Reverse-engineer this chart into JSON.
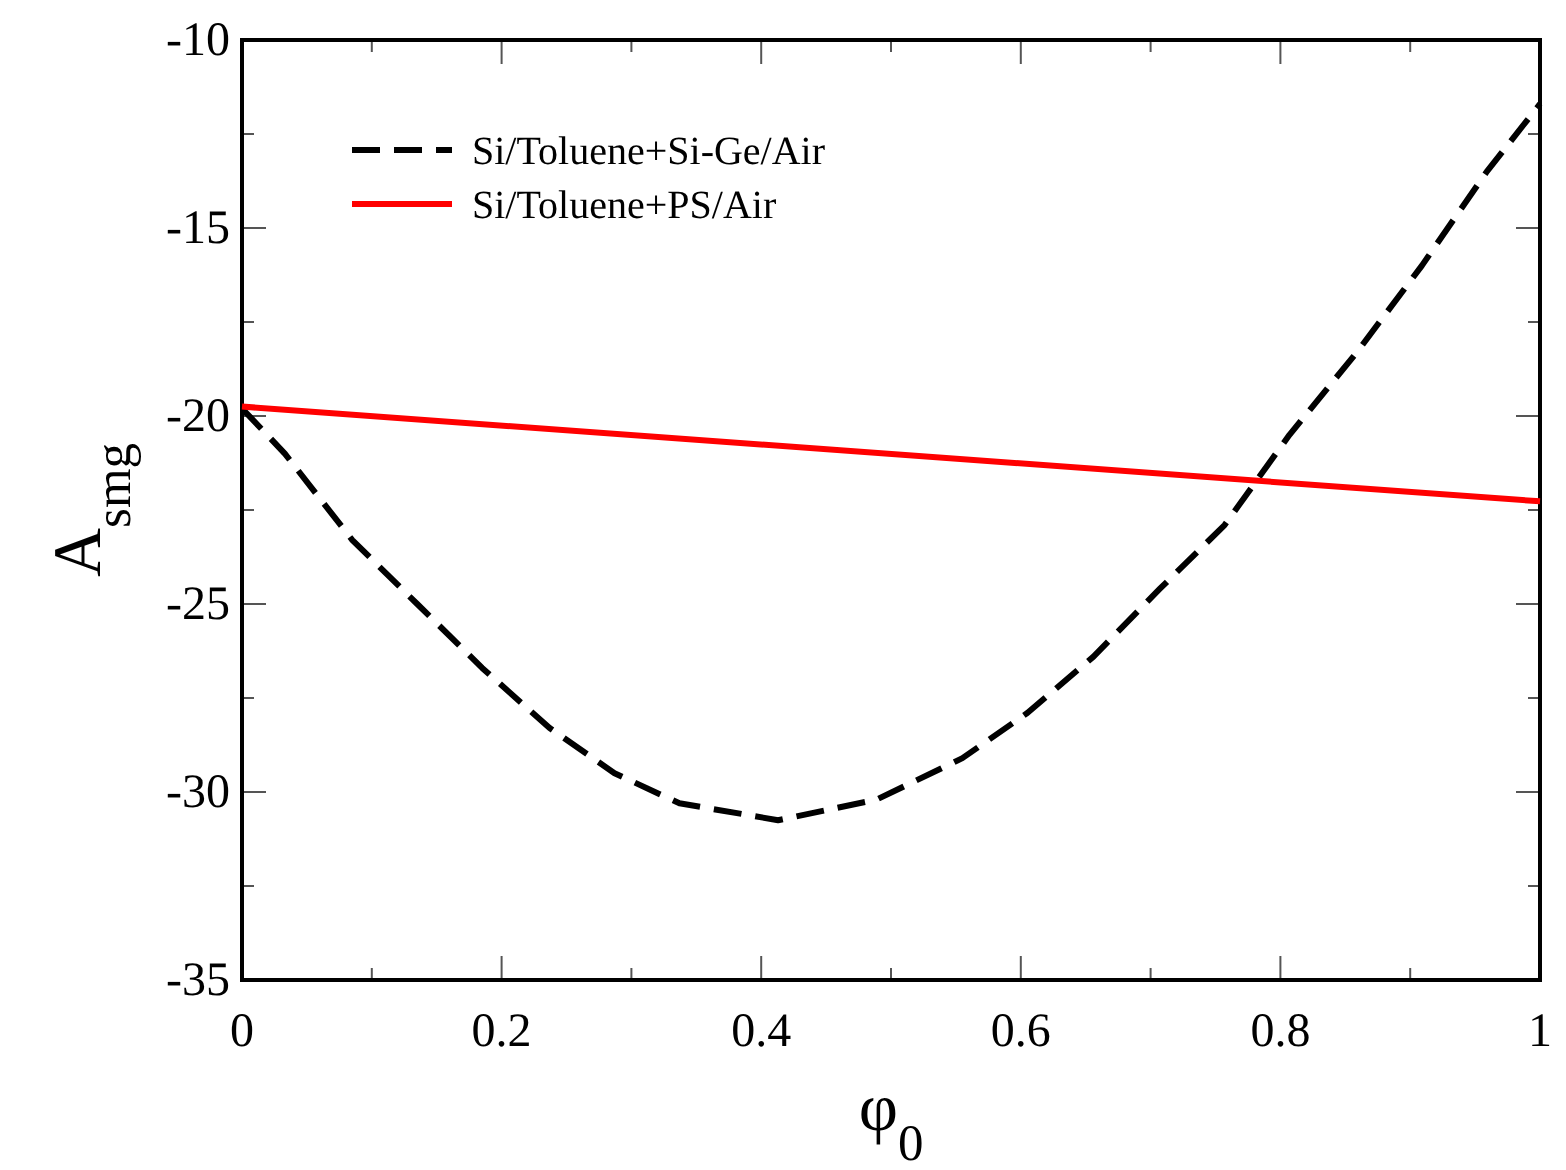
{
  "chart_data": {
    "type": "line",
    "xlabel": "φ$_{0}$",
    "ylabel": "A$_{smg}$",
    "xlim": [
      0,
      1
    ],
    "ylim": [
      -35,
      -10
    ],
    "xticks": [
      0,
      0.2,
      0.4,
      0.6,
      0.8,
      1
    ],
    "yticks": [
      -35,
      -30,
      -25,
      -20,
      -15,
      -10
    ],
    "legend": "top left",
    "grid": false,
    "series": [
      {
        "name": "Si/Toluene+Si-Ge/Air",
        "color": "#000000",
        "line_style": "dashed",
        "x": [
          0,
          0.033,
          0.085,
          0.135,
          0.185,
          0.237,
          0.287,
          0.337,
          0.413,
          0.489,
          0.555,
          0.605,
          0.656,
          0.707,
          0.757,
          0.807,
          0.859,
          0.909,
          0.959,
          1
        ],
        "values": [
          -19.8,
          -21.0,
          -23.3,
          -25.0,
          -26.7,
          -28.3,
          -29.5,
          -30.3,
          -30.75,
          -30.2,
          -29.1,
          -27.9,
          -26.4,
          -24.6,
          -22.9,
          -20.5,
          -18.3,
          -16.0,
          -13.5,
          -11.7
        ]
      },
      {
        "name": "Si/Toluene+PS/Air",
        "color": "#ff0000",
        "line_style": "solid",
        "x": [
          0,
          1
        ],
        "values": [
          -19.75,
          -22.27
        ]
      }
    ]
  }
}
